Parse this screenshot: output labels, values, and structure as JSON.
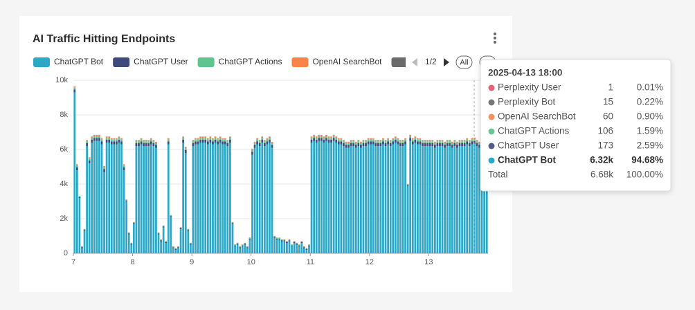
{
  "chart_data": {
    "type": "stacked-bar",
    "title": "AI Traffic Hitting Endpoints",
    "categories": [
      "7",
      null,
      null,
      null,
      null,
      null,
      null,
      null,
      null,
      null,
      null,
      null,
      null,
      null,
      null,
      null,
      null,
      null,
      null,
      null,
      null,
      null,
      null,
      null,
      "8",
      null,
      null,
      null,
      null,
      null,
      null,
      null,
      null,
      null,
      null,
      null,
      null,
      null,
      null,
      null,
      null,
      null,
      null,
      null,
      null,
      null,
      null,
      null,
      "9",
      null,
      null,
      null,
      null,
      null,
      null,
      null,
      null,
      null,
      null,
      null,
      null,
      null,
      null,
      null,
      null,
      null,
      null,
      null,
      null,
      null,
      null,
      null,
      "10",
      null,
      null,
      null,
      null,
      null,
      null,
      null,
      null,
      null,
      null,
      null,
      null,
      null,
      null,
      null,
      null,
      null,
      null,
      null,
      null,
      null,
      null,
      null,
      "11",
      null,
      null,
      null,
      null,
      null,
      null,
      null,
      null,
      null,
      null,
      null,
      null,
      null,
      null,
      null,
      null,
      null,
      null,
      null,
      null,
      null,
      null,
      null,
      "12",
      null,
      null,
      null,
      null,
      null,
      null,
      null,
      null,
      null,
      null,
      null,
      null,
      null,
      null,
      null,
      null,
      null,
      null,
      null,
      null,
      null,
      null,
      null,
      "13",
      null,
      null,
      null,
      null,
      null,
      null,
      null,
      null,
      null,
      null,
      null,
      null,
      null,
      null,
      null,
      null,
      null,
      null,
      null,
      null,
      null,
      null,
      null
    ],
    "ylim": [
      0,
      10000
    ],
    "yticks": [
      0,
      {
        "value": 2000,
        "label": "2k"
      },
      {
        "value": 4000,
        "label": "4k"
      },
      {
        "value": 6000,
        "label": "6k"
      },
      {
        "value": 8000,
        "label": "8k"
      },
      {
        "value": 10000,
        "label": "10k"
      }
    ],
    "grid": true,
    "series": [
      {
        "name": "ChatGPT Bot",
        "color": "#2ba8c8",
        "values": [
          9300,
          4800,
          3200,
          300,
          1300,
          6200,
          5200,
          6400,
          6500,
          6500,
          6500,
          6300,
          4700,
          6400,
          6400,
          6300,
          6300,
          6300,
          6400,
          6300,
          4800,
          3000,
          1100,
          500,
          1700,
          6200,
          6200,
          6300,
          6200,
          6200,
          6200,
          6300,
          6200,
          6100,
          1100,
          700,
          1500,
          600,
          6300,
          2100,
          300,
          200,
          300,
          1400,
          6400,
          5800,
          1300,
          500,
          6200,
          6300,
          6300,
          6400,
          6400,
          6400,
          6300,
          6400,
          6300,
          6400,
          6300,
          6400,
          6300,
          6300,
          6200,
          6400,
          1700,
          400,
          500,
          300,
          400,
          500,
          300,
          800,
          5700,
          6100,
          6300,
          6200,
          6400,
          6200,
          6300,
          6400,
          6100,
          900,
          800,
          800,
          700,
          700,
          600,
          700,
          400,
          600,
          500,
          400,
          600,
          300,
          200,
          400,
          6400,
          6500,
          6400,
          6500,
          6500,
          6400,
          6500,
          6400,
          6400,
          6500,
          6400,
          6300,
          6300,
          6200,
          6100,
          6100,
          6200,
          6200,
          6100,
          6200,
          6100,
          6200,
          6200,
          6300,
          6300,
          6300,
          6200,
          6200,
          6200,
          6300,
          6200,
          6300,
          6200,
          6300,
          6400,
          6300,
          6200,
          6200,
          6300,
          3900,
          6500,
          6300,
          6400,
          6300,
          6300,
          6200,
          6200,
          6200,
          6200,
          6200,
          6100,
          6200,
          6200,
          6200,
          6100,
          6200,
          6200,
          6100,
          6200,
          6100,
          6200,
          6200,
          6200,
          6300,
          6200,
          6300,
          6320,
          6200,
          6100,
          6100,
          6200,
          6300
        ]
      },
      {
        "name": "ChatGPT User",
        "color": "#3f4a7c",
        "values": [
          170,
          170,
          50,
          50,
          50,
          170,
          170,
          170,
          170,
          170,
          170,
          170,
          170,
          170,
          170,
          170,
          170,
          170,
          170,
          170,
          170,
          50,
          50,
          50,
          50,
          170,
          170,
          170,
          170,
          170,
          170,
          170,
          170,
          170,
          50,
          50,
          50,
          50,
          170,
          50,
          50,
          50,
          50,
          50,
          170,
          170,
          50,
          50,
          170,
          170,
          170,
          170,
          170,
          170,
          170,
          170,
          170,
          170,
          170,
          170,
          170,
          170,
          170,
          170,
          50,
          50,
          50,
          50,
          50,
          50,
          50,
          50,
          170,
          170,
          170,
          170,
          170,
          170,
          170,
          170,
          170,
          50,
          50,
          50,
          50,
          50,
          50,
          50,
          50,
          50,
          50,
          50,
          50,
          50,
          50,
          50,
          170,
          170,
          170,
          170,
          170,
          170,
          170,
          170,
          170,
          170,
          170,
          170,
          170,
          170,
          170,
          170,
          170,
          170,
          170,
          170,
          170,
          170,
          170,
          170,
          170,
          170,
          170,
          170,
          170,
          170,
          170,
          170,
          170,
          170,
          170,
          170,
          170,
          170,
          170,
          50,
          170,
          170,
          170,
          170,
          170,
          170,
          170,
          170,
          170,
          170,
          170,
          170,
          170,
          170,
          170,
          170,
          170,
          170,
          170,
          170,
          170,
          170,
          170,
          170,
          170,
          170,
          173,
          170,
          170,
          170,
          170,
          170
        ]
      },
      {
        "name": "ChatGPT Actions",
        "color": "#5fc48e",
        "values": [
          100,
          100,
          30,
          30,
          30,
          100,
          100,
          100,
          100,
          100,
          100,
          100,
          100,
          100,
          100,
          100,
          100,
          100,
          100,
          100,
          100,
          30,
          30,
          30,
          30,
          100,
          100,
          100,
          100,
          100,
          100,
          100,
          100,
          100,
          30,
          30,
          30,
          30,
          100,
          30,
          30,
          30,
          30,
          30,
          100,
          100,
          30,
          30,
          100,
          100,
          100,
          100,
          100,
          100,
          100,
          100,
          100,
          100,
          100,
          100,
          100,
          100,
          100,
          100,
          30,
          30,
          30,
          30,
          30,
          30,
          30,
          30,
          100,
          100,
          100,
          100,
          100,
          100,
          100,
          100,
          100,
          30,
          30,
          30,
          30,
          30,
          30,
          30,
          30,
          30,
          30,
          30,
          30,
          30,
          30,
          30,
          100,
          100,
          100,
          100,
          100,
          100,
          100,
          100,
          100,
          100,
          100,
          100,
          100,
          100,
          100,
          100,
          100,
          100,
          100,
          100,
          100,
          100,
          100,
          100,
          100,
          100,
          100,
          100,
          100,
          100,
          100,
          100,
          100,
          100,
          100,
          100,
          100,
          100,
          100,
          30,
          100,
          100,
          100,
          100,
          100,
          100,
          100,
          100,
          100,
          100,
          100,
          100,
          100,
          100,
          100,
          100,
          100,
          100,
          100,
          100,
          100,
          100,
          100,
          100,
          100,
          100,
          106,
          100,
          100,
          100,
          100,
          100
        ]
      },
      {
        "name": "OpenAI SearchBot",
        "color": "#fb8349",
        "values": [
          60,
          60,
          20,
          20,
          20,
          60,
          60,
          60,
          60,
          60,
          60,
          60,
          60,
          60,
          60,
          60,
          60,
          60,
          60,
          60,
          60,
          20,
          20,
          20,
          20,
          60,
          60,
          60,
          60,
          60,
          60,
          60,
          60,
          60,
          20,
          20,
          20,
          20,
          60,
          20,
          20,
          20,
          20,
          20,
          60,
          60,
          20,
          20,
          60,
          60,
          60,
          60,
          60,
          60,
          60,
          60,
          60,
          60,
          60,
          60,
          60,
          60,
          60,
          60,
          20,
          20,
          20,
          20,
          20,
          20,
          20,
          20,
          60,
          60,
          60,
          60,
          60,
          60,
          60,
          60,
          60,
          20,
          20,
          20,
          20,
          20,
          20,
          20,
          20,
          20,
          20,
          20,
          20,
          20,
          20,
          20,
          60,
          60,
          60,
          60,
          60,
          60,
          60,
          60,
          60,
          60,
          60,
          60,
          60,
          60,
          60,
          60,
          60,
          60,
          60,
          60,
          60,
          60,
          60,
          60,
          60,
          60,
          60,
          60,
          60,
          60,
          60,
          60,
          60,
          60,
          60,
          60,
          60,
          60,
          60,
          20,
          60,
          60,
          60,
          60,
          60,
          60,
          60,
          60,
          60,
          60,
          60,
          60,
          60,
          60,
          60,
          60,
          60,
          60,
          60,
          60,
          60,
          60,
          60,
          60,
          60,
          60,
          60,
          60,
          60,
          60,
          60,
          60
        ]
      },
      {
        "name": "Perplexity Bot",
        "color": "#6b6b6b",
        "values": [
          15,
          15,
          5,
          5,
          5,
          15,
          15,
          15,
          15,
          15,
          15,
          15,
          15,
          15,
          15,
          15,
          15,
          15,
          15,
          15,
          15,
          5,
          5,
          5,
          5,
          15,
          15,
          15,
          15,
          15,
          15,
          15,
          15,
          15,
          5,
          5,
          5,
          5,
          15,
          5,
          5,
          5,
          5,
          5,
          15,
          15,
          5,
          5,
          15,
          15,
          15,
          15,
          15,
          15,
          15,
          15,
          15,
          15,
          15,
          15,
          15,
          15,
          15,
          15,
          5,
          5,
          5,
          5,
          5,
          5,
          5,
          5,
          15,
          15,
          15,
          15,
          15,
          15,
          15,
          15,
          15,
          5,
          5,
          5,
          5,
          5,
          5,
          5,
          5,
          5,
          5,
          5,
          5,
          5,
          5,
          5,
          15,
          15,
          15,
          15,
          15,
          15,
          15,
          15,
          15,
          15,
          15,
          15,
          15,
          15,
          15,
          15,
          15,
          15,
          15,
          15,
          15,
          15,
          15,
          15,
          15,
          15,
          15,
          15,
          15,
          15,
          15,
          15,
          15,
          15,
          15,
          15,
          15,
          15,
          15,
          5,
          15,
          15,
          15,
          15,
          15,
          15,
          15,
          15,
          15,
          15,
          15,
          15,
          15,
          15,
          15,
          15,
          15,
          15,
          15,
          15,
          15,
          15,
          15,
          15,
          15,
          15,
          15,
          15,
          15,
          15,
          15,
          15
        ]
      }
    ],
    "legend_page": "1/2",
    "legend_all": "All",
    "tooltip": {
      "title": "2025-04-13 18:00",
      "rows": [
        {
          "name": "Perplexity User",
          "value": "1",
          "percent": "0.01%",
          "color": "#e06478"
        },
        {
          "name": "Perplexity Bot",
          "value": "15",
          "percent": "0.22%",
          "color": "#777777"
        },
        {
          "name": "OpenAI SearchBot",
          "value": "60",
          "percent": "0.90%",
          "color": "#f2925f"
        },
        {
          "name": "ChatGPT Actions",
          "value": "106",
          "percent": "1.59%",
          "color": "#6cc596"
        },
        {
          "name": "ChatGPT User",
          "value": "173",
          "percent": "2.59%",
          "color": "#535c87"
        },
        {
          "name": "ChatGPT Bot",
          "value": "6.32k",
          "percent": "94.68%",
          "color": "#2ba8c8"
        }
      ],
      "total": {
        "name": "Total",
        "value": "6.68k",
        "percent": "100.00%"
      }
    }
  }
}
